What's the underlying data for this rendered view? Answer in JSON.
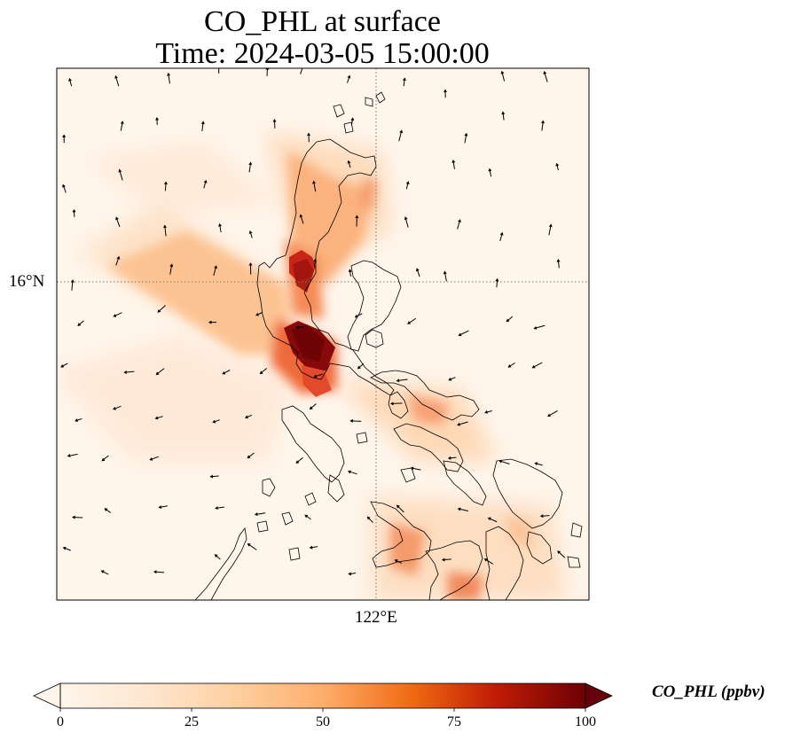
{
  "title": {
    "line1": "CO_PHL at surface",
    "line2": "Time: 2024-03-05 15:00:00"
  },
  "axes": {
    "lat_label": "16°N",
    "lon_label": "122°E"
  },
  "colorbar": {
    "label": "CO_PHL (ppbv)",
    "ticks": [
      "0",
      "25",
      "50",
      "75",
      "100"
    ],
    "range": [
      0,
      100
    ],
    "colormap": [
      "#fff5eb",
      "#fdd9b4",
      "#fdae6b",
      "#f16913",
      "#d94801",
      "#a50f15",
      "#67000d"
    ],
    "extend": "both"
  },
  "colors": {
    "background": "#fff5eb",
    "coast": "#000000",
    "grid": "#777777"
  }
}
